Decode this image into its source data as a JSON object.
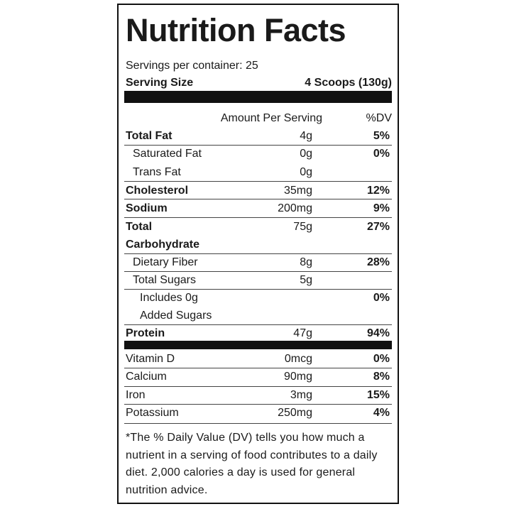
{
  "title": "Nutrition Facts",
  "servings": "Servings per container: 25",
  "serving_size": {
    "label": "Serving Size",
    "value": "4 Scoops (130g)"
  },
  "header": {
    "amount": "Amount Per Serving",
    "dv": "%DV"
  },
  "nutrients": [
    {
      "label": "Total Fat",
      "amount": "4g",
      "dv": "5%"
    },
    {
      "label": "Saturated Fat",
      "amount": "0g",
      "dv": "0%"
    },
    {
      "label": "Trans Fat",
      "amount": "0g"
    },
    {
      "label": "Cholesterol",
      "amount": "35mg",
      "dv": "12%"
    },
    {
      "label": "Sodium",
      "amount": "200mg",
      "dv": "9%"
    },
    {
      "label": "Total Carbohydrate",
      "amount": "75g",
      "dv": "27%"
    },
    {
      "label": "Dietary Fiber",
      "amount": "8g",
      "dv": "28%"
    },
    {
      "label": "Total Sugars",
      "amount": "5g"
    },
    {
      "label": "Includes 0g Added Sugars",
      "dv": "0%"
    },
    {
      "label": "Protein",
      "amount": "47g",
      "dv": "94%"
    }
  ],
  "vitamins": [
    {
      "label": "Vitamin D",
      "amount": "0mcg",
      "dv": "0%"
    },
    {
      "label": "Calcium",
      "amount": "90mg",
      "dv": "8%"
    },
    {
      "label": "Iron",
      "amount": "3mg",
      "dv": "15%"
    },
    {
      "label": "Potassium",
      "amount": "250mg",
      "dv": "4%"
    }
  ],
  "footnote": "*The % Daily Value (DV) tells you how much a nutrient in a serving of food contributes to a daily diet. 2,000 calories a day is used for general nutrition advice."
}
